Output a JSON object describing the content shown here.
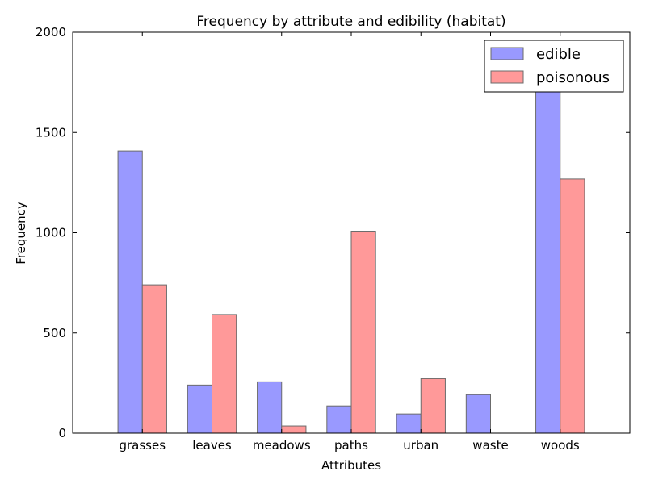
{
  "chart_data": {
    "type": "bar",
    "title": "Frequency by attribute and edibility (habitat)",
    "xlabel": "Attributes",
    "ylabel": "Frequency",
    "categories": [
      "grasses",
      "leaves",
      "meadows",
      "paths",
      "urban",
      "waste",
      "woods"
    ],
    "series": [
      {
        "name": "edible",
        "color": "#9999ff",
        "values": [
          1408,
          240,
          256,
          136,
          96,
          192,
          1880
        ]
      },
      {
        "name": "poisonous",
        "color": "#ff9999",
        "values": [
          740,
          592,
          36,
          1008,
          272,
          0,
          1268
        ]
      }
    ],
    "ylim": [
      0,
      2000
    ],
    "yticks": [
      0,
      500,
      1000,
      1500,
      2000
    ],
    "grid": false,
    "legend_position": "top-right"
  }
}
